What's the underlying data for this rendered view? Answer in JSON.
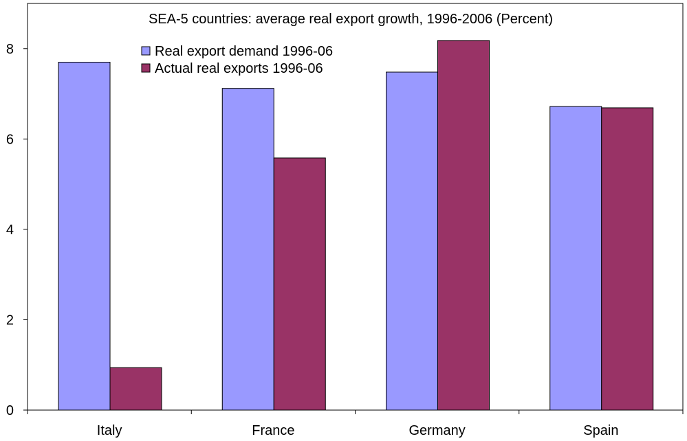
{
  "chart_data": {
    "type": "bar",
    "title": "SEA-5 countries: average real export growth, 1996-2006 (Percent)",
    "xlabel": "",
    "ylabel": "",
    "categories": [
      "Italy",
      "France",
      "Germany",
      "Spain"
    ],
    "series": [
      {
        "name": "Real export demand 1996-06",
        "color": "#9999FF",
        "values": [
          7.7,
          7.12,
          7.48,
          6.72
        ]
      },
      {
        "name": "Actual real exports 1996-06",
        "color": "#993366",
        "values": [
          0.94,
          5.58,
          8.18,
          6.69
        ]
      }
    ],
    "ylim": [
      0,
      9
    ],
    "yticks": [
      "0",
      "2",
      "4",
      "6",
      "8"
    ],
    "grid": false,
    "legend_position": "top-left"
  }
}
